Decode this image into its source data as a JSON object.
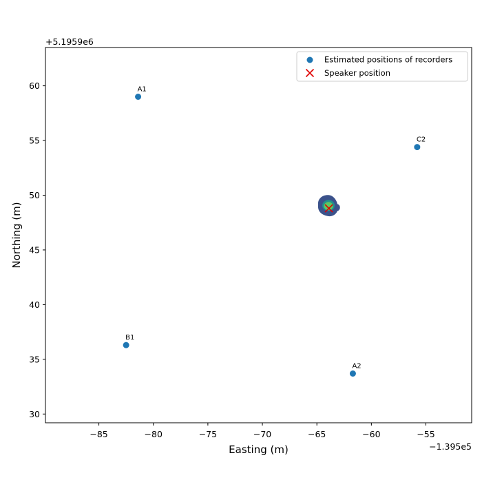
{
  "chart_data": {
    "type": "scatter",
    "xlabel": "Easting (m)",
    "ylabel": "Northing (m)",
    "x_offset_label": "−1.395e5",
    "y_offset_label": "+5.1959e6",
    "xlim": [
      -89.9,
      -50.8
    ],
    "ylim": [
      29.2,
      63.5
    ],
    "xticks": [
      -85,
      -80,
      -75,
      -70,
      -65,
      -60,
      -55
    ],
    "xtick_labels": [
      "−85",
      "−80",
      "−75",
      "−70",
      "−65",
      "−60",
      "−55"
    ],
    "yticks": [
      30,
      35,
      40,
      45,
      50,
      55,
      60
    ],
    "ytick_labels": [
      "30",
      "35",
      "40",
      "45",
      "50",
      "55",
      "60"
    ],
    "grid": false,
    "legend_position": "top-right",
    "series": [
      {
        "name": "Estimated positions of recorders",
        "marker": "circle",
        "color": "#1f77b4",
        "points": [
          {
            "label": "A1",
            "x": -81.4,
            "y": 59.0
          },
          {
            "label": "C2",
            "x": -55.8,
            "y": 54.4
          },
          {
            "label": "B1",
            "x": -82.5,
            "y": 36.3
          },
          {
            "label": "A2",
            "x": -61.7,
            "y": 33.7
          }
        ]
      },
      {
        "name": "Speaker position",
        "marker": "x",
        "color": "#e00000",
        "points": [
          {
            "x": -63.9,
            "y": 48.8
          }
        ]
      }
    ],
    "likelihood_blob": {
      "center_x": -64.0,
      "center_y": 49.0,
      "outer_color": "#3b528b",
      "middle_color": "#21918c",
      "inner_color": "#5ec962"
    }
  }
}
